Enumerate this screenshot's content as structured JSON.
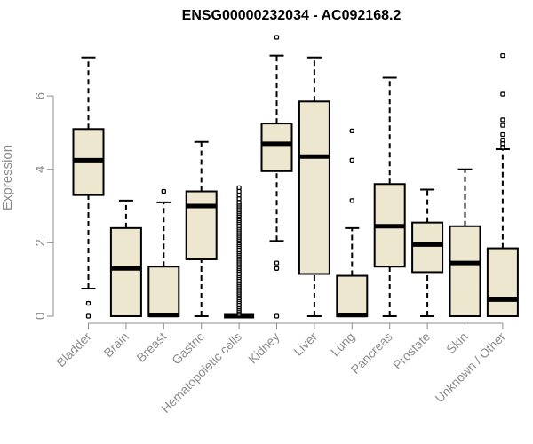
{
  "chart_data": {
    "type": "boxplot",
    "title": "ENSG00000232034 - AC092168.2",
    "xlabel": "",
    "ylabel": "Expression",
    "ylim": [
      0,
      7.6
    ],
    "yticks": [
      0,
      2,
      4,
      6
    ],
    "grid": false,
    "legend": "none",
    "colors": {
      "box_fill": "#ede7cf",
      "stroke": "#000000",
      "axis_text": "#8c8c8c"
    },
    "categories": [
      "Bladder",
      "Brain",
      "Breast",
      "Gastric",
      "Hematopoietic cells",
      "Kidney",
      "Liver",
      "Lung",
      "Pancreas",
      "Prostate",
      "Skin",
      "Unknown / Other"
    ],
    "boxes": [
      {
        "category": "Bladder",
        "whisker_low": 0.75,
        "q1": 3.3,
        "median": 4.25,
        "q3": 5.1,
        "whisker_high": 7.05,
        "outliers": [
          0.35,
          0.0
        ]
      },
      {
        "category": "Brain",
        "whisker_low": 0.0,
        "q1": 0.0,
        "median": 1.3,
        "q3": 2.4,
        "whisker_high": 3.15,
        "outliers": []
      },
      {
        "category": "Breast",
        "whisker_low": 0.0,
        "q1": 0.0,
        "median": 0.03,
        "q3": 1.35,
        "whisker_high": 3.1,
        "outliers": [
          3.4
        ]
      },
      {
        "category": "Gastric",
        "whisker_low": 0.0,
        "q1": 1.55,
        "median": 3.0,
        "q3": 3.4,
        "whisker_high": 4.75,
        "outliers": []
      },
      {
        "category": "Hematopoietic cells",
        "whisker_low": 0.0,
        "q1": 0.0,
        "median": 0.0,
        "q3": 0.0,
        "whisker_high": 0.0,
        "outliers": [
          0.05,
          0.1,
          0.15,
          0.2,
          0.25,
          0.3,
          0.35,
          0.4,
          0.45,
          0.5,
          0.55,
          0.6,
          0.65,
          0.7,
          0.75,
          0.8,
          0.85,
          0.9,
          0.95,
          1.0,
          1.05,
          1.1,
          1.15,
          1.2,
          1.25,
          1.3,
          1.35,
          1.4,
          1.45,
          1.5,
          1.55,
          1.6,
          1.65,
          1.7,
          1.75,
          1.8,
          1.85,
          1.9,
          1.95,
          2.0,
          2.05,
          2.1,
          2.15,
          2.2,
          2.25,
          2.3,
          2.35,
          2.4,
          2.45,
          2.5,
          2.55,
          2.6,
          2.65,
          2.7,
          2.75,
          2.8,
          2.85,
          2.9,
          2.95,
          3.0,
          3.05,
          3.1,
          3.2,
          3.3,
          3.4,
          3.5
        ]
      },
      {
        "category": "Kidney",
        "whisker_low": 2.05,
        "q1": 3.95,
        "median": 4.7,
        "q3": 5.25,
        "whisker_high": 7.1,
        "outliers": [
          7.6,
          1.45,
          1.3,
          0.0
        ]
      },
      {
        "category": "Liver",
        "whisker_low": 0.0,
        "q1": 1.15,
        "median": 4.35,
        "q3": 5.85,
        "whisker_high": 7.05,
        "outliers": []
      },
      {
        "category": "Lung",
        "whisker_low": 0.0,
        "q1": 0.0,
        "median": 0.03,
        "q3": 1.1,
        "whisker_high": 2.4,
        "outliers": [
          5.05,
          4.25,
          3.15
        ]
      },
      {
        "category": "Pancreas",
        "whisker_low": 0.0,
        "q1": 1.35,
        "median": 2.45,
        "q3": 3.6,
        "whisker_high": 6.5,
        "outliers": []
      },
      {
        "category": "Prostate",
        "whisker_low": 0.0,
        "q1": 1.2,
        "median": 1.95,
        "q3": 2.55,
        "whisker_high": 3.45,
        "outliers": []
      },
      {
        "category": "Skin",
        "whisker_low": 0.0,
        "q1": 0.0,
        "median": 1.45,
        "q3": 2.45,
        "whisker_high": 4.0,
        "outliers": []
      },
      {
        "category": "Unknown / Other",
        "whisker_low": 0.0,
        "q1": 0.0,
        "median": 0.45,
        "q3": 1.85,
        "whisker_high": 4.55,
        "outliers": [
          7.1,
          6.05,
          5.35,
          5.2,
          4.95,
          4.8,
          4.7,
          4.6
        ]
      }
    ]
  }
}
